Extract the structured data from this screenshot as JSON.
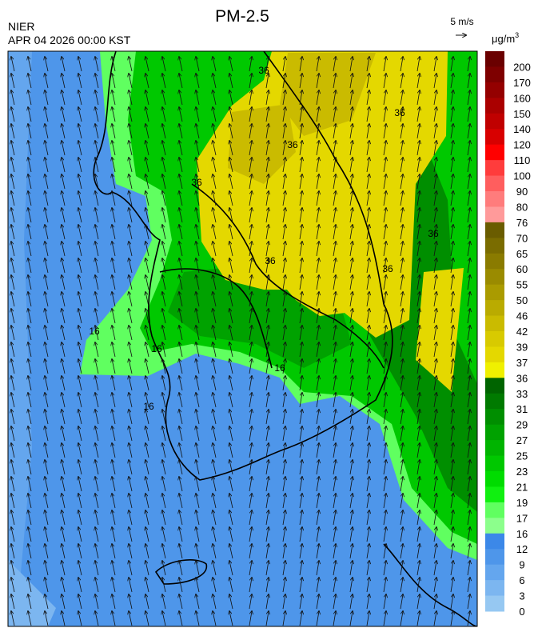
{
  "header": {
    "title": "PM-2.5",
    "source": "NIER",
    "datetime": "APR 04 2026 00:00 KST",
    "wind_scale": "5 m/s",
    "unit": "μg/m",
    "unit_power": "3"
  },
  "colorbar": {
    "labels": [
      200,
      170,
      160,
      150,
      140,
      120,
      110,
      100,
      90,
      80,
      76,
      70,
      65,
      60,
      55,
      50,
      46,
      42,
      39,
      37,
      36,
      33,
      31,
      29,
      27,
      25,
      23,
      21,
      19,
      17,
      16,
      12,
      9,
      6,
      3,
      0
    ],
    "colors": [
      "#6a0000",
      "#7e0000",
      "#940000",
      "#aa0000",
      "#c00000",
      "#d80000",
      "#ff0000",
      "#ff3c3c",
      "#ff5e5e",
      "#ff7c7c",
      "#ff9a9a",
      "#6a5c00",
      "#7a6c00",
      "#8a7b00",
      "#9a8b00",
      "#aa9b00",
      "#baab00",
      "#cabb00",
      "#d8ca00",
      "#e4d800",
      "#f0f000",
      "#006400",
      "#007a00",
      "#008e00",
      "#00a200",
      "#00b400",
      "#00c800",
      "#00dc00",
      "#10f010",
      "#60ff60",
      "#8cff8c",
      "#3c88e8",
      "#4e96ea",
      "#64a6ee",
      "#7cb6f0",
      "#96c8f2"
    ]
  },
  "map": {
    "contour_labels": [
      "36",
      "36",
      "36",
      "36",
      "36",
      "36",
      "36",
      "16",
      "16",
      "16",
      "16"
    ]
  }
}
